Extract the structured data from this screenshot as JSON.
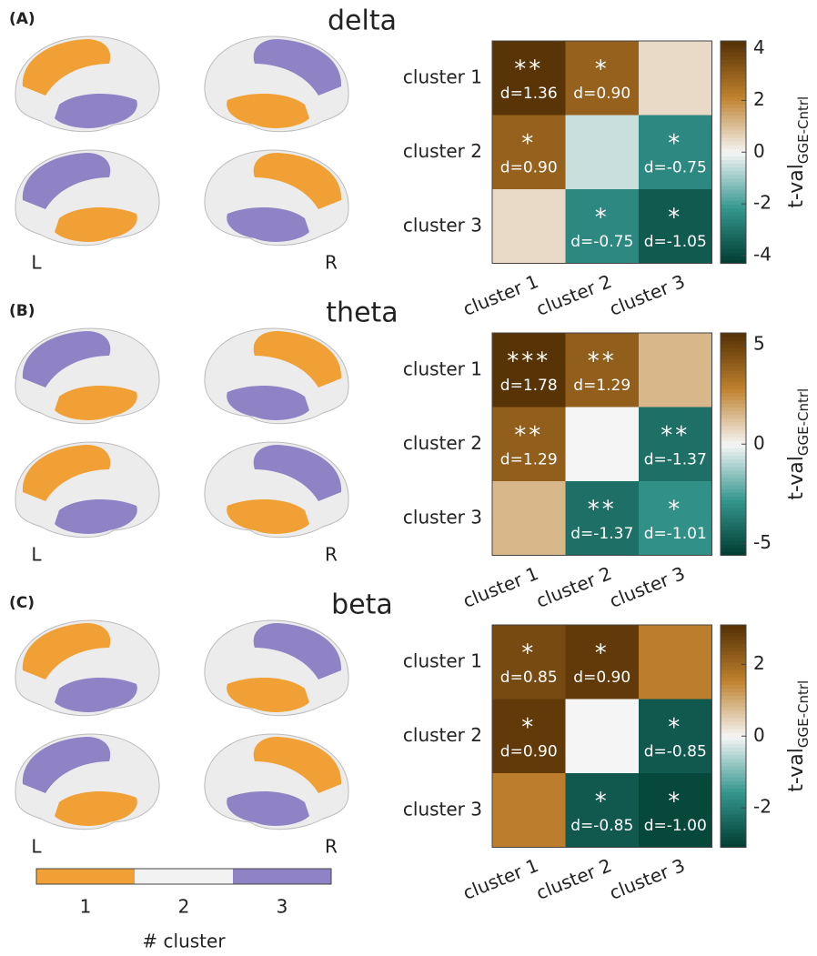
{
  "chart_data": [
    {
      "type": "heatmap",
      "panel_label": "(A)",
      "title": "delta",
      "brain_labels": [
        "L",
        "R"
      ],
      "categories": [
        "cluster 1",
        "cluster 2",
        "cluster 3"
      ],
      "rows": [
        "cluster 1",
        "cluster 2",
        "cluster 3"
      ],
      "values": [
        [
          4.2,
          3.0,
          0.5
        ],
        [
          3.0,
          -0.5,
          -2.5
        ],
        [
          0.5,
          -2.5,
          -3.6
        ]
      ],
      "stars": [
        [
          "**",
          "*",
          null
        ],
        [
          "*",
          null,
          "*"
        ],
        [
          null,
          "*",
          "*"
        ]
      ],
      "effect_labels": [
        [
          "d=1.36",
          "d=0.90",
          null
        ],
        [
          "d=0.90",
          null,
          "d=-0.75"
        ],
        [
          null,
          "d=-0.75",
          "d=-1.05"
        ]
      ],
      "zlim": [
        -4.3,
        4.3
      ],
      "zticks": [
        -4,
        -2,
        0,
        2,
        4
      ],
      "colorbar_label": "t-val",
      "colorbar_label_sub": "GGE-Cntrl",
      "colormap": [
        "#003c30",
        "#35978f",
        "#f5f5f5",
        "#bf812d",
        "#543005"
      ]
    },
    {
      "type": "heatmap",
      "panel_label": "(B)",
      "title": "theta",
      "brain_labels": [
        "L",
        "R"
      ],
      "categories": [
        "cluster 1",
        "cluster 2",
        "cluster 3"
      ],
      "rows": [
        "cluster 1",
        "cluster 2",
        "cluster 3"
      ],
      "values": [
        [
          5.5,
          4.0,
          1.5
        ],
        [
          4.0,
          0.0,
          -4.0
        ],
        [
          1.5,
          -4.0,
          -3.0
        ]
      ],
      "stars": [
        [
          "***",
          "**",
          null
        ],
        [
          "**",
          null,
          "**"
        ],
        [
          null,
          "**",
          "*"
        ]
      ],
      "effect_labels": [
        [
          "d=1.78",
          "d=1.29",
          null
        ],
        [
          "d=1.29",
          null,
          "d=-1.37"
        ],
        [
          null,
          "d=-1.37",
          "d=-1.01"
        ]
      ],
      "zlim": [
        -5.6,
        5.6
      ],
      "zticks": [
        -5,
        0,
        5
      ],
      "colorbar_label": "t-val",
      "colorbar_label_sub": "GGE-Cntrl",
      "colormap": [
        "#003c30",
        "#35978f",
        "#f5f5f5",
        "#bf812d",
        "#543005"
      ]
    },
    {
      "type": "heatmap",
      "panel_label": "(C)",
      "title": "beta",
      "brain_labels": [
        "L",
        "R"
      ],
      "categories": [
        "cluster 1",
        "cluster 2",
        "cluster 3"
      ],
      "rows": [
        "cluster 1",
        "cluster 2",
        "cluster 3"
      ],
      "values": [
        [
          2.6,
          2.9,
          1.6
        ],
        [
          2.9,
          0.0,
          -2.6
        ],
        [
          1.6,
          -2.6,
          -2.9
        ]
      ],
      "stars": [
        [
          "*",
          "*",
          null
        ],
        [
          "*",
          null,
          "*"
        ],
        [
          null,
          "*",
          "*"
        ]
      ],
      "effect_labels": [
        [
          "d=0.85",
          "d=0.90",
          null
        ],
        [
          "d=0.90",
          null,
          "d=-0.85"
        ],
        [
          null,
          "d=-0.85",
          "d=-1.00"
        ]
      ],
      "zlim": [
        -3.1,
        3.1
      ],
      "zticks": [
        -2,
        0,
        2
      ],
      "colorbar_label": "t-val",
      "colorbar_label_sub": "GGE-Cntrl",
      "colormap": [
        "#003c30",
        "#35978f",
        "#f5f5f5",
        "#bf812d",
        "#543005"
      ]
    },
    {
      "type": "legend",
      "categories": [
        "1",
        "2",
        "3"
      ],
      "colors": [
        "#f0a035",
        "#f2f2f2",
        "#8f83c5"
      ],
      "xlabel": "# cluster"
    }
  ]
}
